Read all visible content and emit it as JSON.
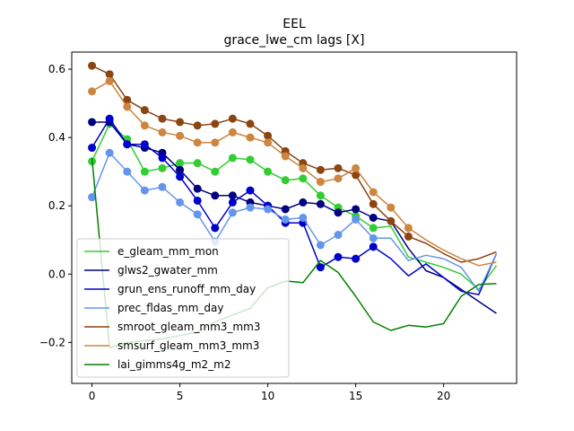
{
  "chart_data": {
    "type": "line",
    "title": "EEL",
    "subtitle": "grace_lwe_cm lags [X]",
    "xlabel": "",
    "ylabel": "",
    "xlim": [
      -1.15,
      24.15
    ],
    "ylim": [
      -0.32,
      0.65
    ],
    "xticks": [
      0,
      5,
      10,
      15,
      20
    ],
    "yticks": [
      -0.2,
      0.0,
      0.2,
      0.4,
      0.6
    ],
    "xtick_labels": [
      "0",
      "5",
      "10",
      "15",
      "20"
    ],
    "ytick_labels": [
      "−0.2",
      "0.0",
      "0.2",
      "0.4",
      "0.6"
    ],
    "grid": false,
    "legend_position": "lower-left",
    "x": [
      0,
      1,
      2,
      3,
      4,
      5,
      6,
      7,
      8,
      9,
      10,
      11,
      12,
      13,
      14,
      15,
      16,
      17,
      18,
      19,
      20,
      21,
      22,
      23
    ],
    "series": [
      {
        "name": "e_gleam_mm_mon",
        "color": "#32cd32",
        "marker_count": 17,
        "values": [
          0.33,
          0.44,
          0.395,
          0.3,
          0.31,
          0.325,
          0.325,
          0.3,
          0.34,
          0.335,
          0.3,
          0.275,
          0.28,
          0.23,
          0.195,
          0.17,
          0.135,
          0.14,
          0.05,
          0.035,
          0.02,
          0.0,
          -0.045,
          0.025
        ]
      },
      {
        "name": "glws2_gwater_mm",
        "color": "#000080",
        "marker_count": 17,
        "values": [
          0.445,
          0.445,
          0.38,
          0.37,
          0.355,
          0.305,
          0.25,
          0.23,
          0.23,
          0.21,
          0.2,
          0.19,
          0.21,
          0.205,
          0.18,
          0.19,
          0.165,
          0.155,
          0.075,
          0.01,
          -0.01,
          -0.045,
          -0.08,
          -0.115
        ]
      },
      {
        "name": "grun_ens_runoff_mm_day",
        "color": "#0000cd",
        "marker_count": 17,
        "values": [
          0.37,
          0.455,
          0.38,
          0.38,
          0.34,
          0.285,
          0.215,
          0.135,
          0.21,
          0.245,
          0.2,
          0.15,
          0.15,
          0.02,
          0.05,
          0.045,
          0.08,
          0.045,
          -0.005,
          0.03,
          -0.01,
          -0.05,
          -0.06,
          0.06
        ]
      },
      {
        "name": "prec_fldas_mm_day",
        "color": "#6495ed",
        "marker_count": 17,
        "values": [
          0.225,
          0.355,
          0.3,
          0.245,
          0.255,
          0.21,
          0.175,
          0.095,
          0.18,
          0.195,
          0.19,
          0.16,
          0.165,
          0.085,
          0.115,
          0.16,
          0.105,
          0.105,
          0.04,
          0.055,
          0.045,
          0.02,
          -0.05,
          0.06
        ]
      },
      {
        "name": "smroot_gleam_mm3_mm3",
        "color": "#8b4513",
        "marker_count": 19,
        "values": [
          0.61,
          0.585,
          0.51,
          0.48,
          0.455,
          0.445,
          0.435,
          0.44,
          0.455,
          0.44,
          0.405,
          0.36,
          0.325,
          0.305,
          0.31,
          0.29,
          0.205,
          0.155,
          0.11,
          0.09,
          0.06,
          0.035,
          0.045,
          0.065
        ]
      },
      {
        "name": "smsurf_gleam_mm3_mm3",
        "color": "#cd853f",
        "marker_count": 19,
        "values": [
          0.535,
          0.565,
          0.49,
          0.435,
          0.415,
          0.405,
          0.385,
          0.385,
          0.415,
          0.4,
          0.385,
          0.345,
          0.31,
          0.27,
          0.28,
          0.31,
          0.24,
          0.195,
          0.135,
          0.1,
          0.07,
          0.045,
          0.025,
          0.035
        ]
      },
      {
        "name": "lai_gimms4g_m2_m2",
        "color": "#008000",
        "marker_count": 0,
        "values": [
          0.34,
          -0.215,
          -0.2,
          -0.195,
          -0.19,
          -0.18,
          -0.17,
          -0.14,
          -0.12,
          -0.1,
          -0.04,
          -0.02,
          -0.025,
          0.04,
          0.005,
          -0.065,
          -0.14,
          -0.165,
          -0.15,
          -0.155,
          -0.145,
          -0.065,
          -0.03,
          -0.028
        ]
      }
    ]
  }
}
